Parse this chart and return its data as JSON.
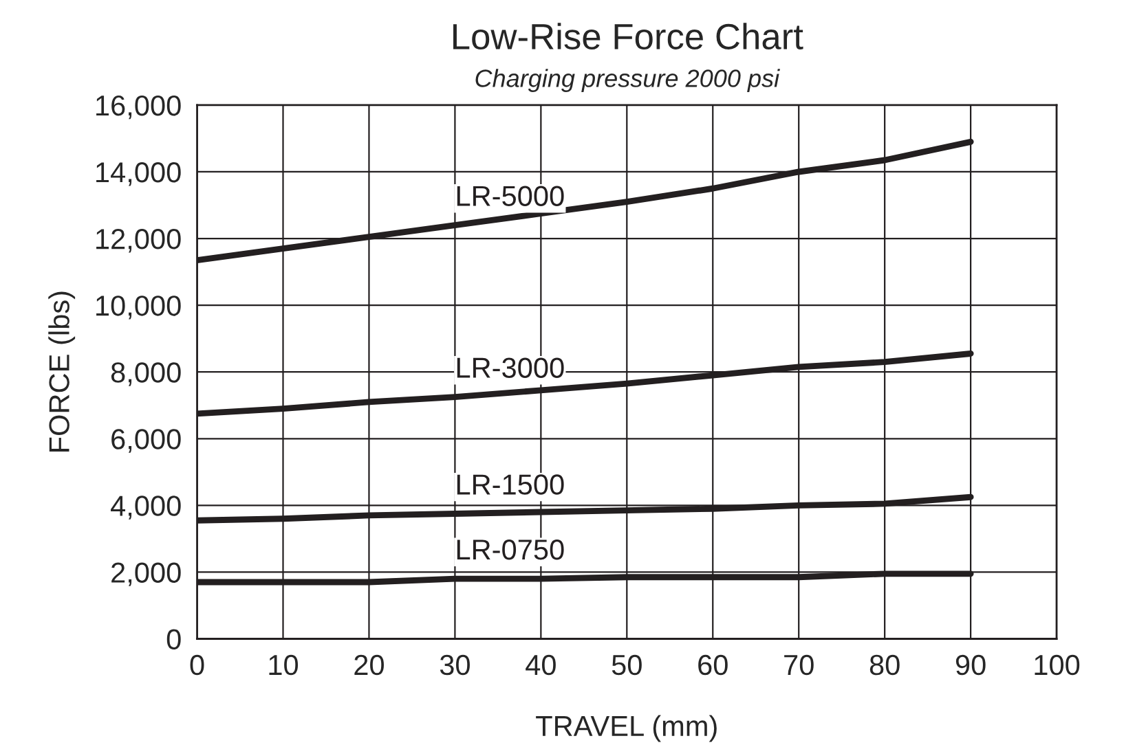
{
  "chart_data": {
    "type": "line",
    "title": "Low-Rise Force Chart",
    "subtitle": "Charging pressure 2000 psi",
    "xlabel": "TRAVEL (mm)",
    "ylabel": "FORCE (lbs)",
    "x": [
      0,
      10,
      20,
      30,
      40,
      50,
      60,
      70,
      80,
      90
    ],
    "series": [
      {
        "name": "LR-5000",
        "color": "#231f20",
        "values": [
          11350,
          11700,
          12050,
          12400,
          12750,
          13100,
          13500,
          14000,
          14350,
          14900
        ]
      },
      {
        "name": "LR-3000",
        "color": "#231f20",
        "values": [
          6750,
          6900,
          7100,
          7250,
          7450,
          7650,
          7900,
          8150,
          8300,
          8550
        ]
      },
      {
        "name": "LR-1500",
        "color": "#231f20",
        "values": [
          3550,
          3600,
          3700,
          3750,
          3800,
          3850,
          3900,
          4000,
          4050,
          4250
        ]
      },
      {
        "name": "LR-0750",
        "color": "#231f20",
        "values": [
          1700,
          1700,
          1700,
          1800,
          1800,
          1850,
          1850,
          1850,
          1950,
          1950
        ]
      }
    ],
    "xlim": [
      0,
      100
    ],
    "xticks": [
      0,
      10,
      20,
      30,
      40,
      50,
      60,
      70,
      80,
      90,
      100
    ],
    "ylim": [
      0,
      16000
    ],
    "yticks": [
      {
        "value": 0,
        "label": "0"
      },
      {
        "value": 2000,
        "label": "2,000"
      },
      {
        "value": 4000,
        "label": "4,000"
      },
      {
        "value": 6000,
        "label": "6,000"
      },
      {
        "value": 8000,
        "label": "8,000"
      },
      {
        "value": 10000,
        "label": "10,000"
      },
      {
        "value": 12000,
        "label": "12,000"
      },
      {
        "value": 14000,
        "label": "14,000"
      },
      {
        "value": 16000,
        "label": "16,000"
      }
    ],
    "grid": true,
    "legend": false,
    "marker": "none",
    "line_style": "solid"
  }
}
